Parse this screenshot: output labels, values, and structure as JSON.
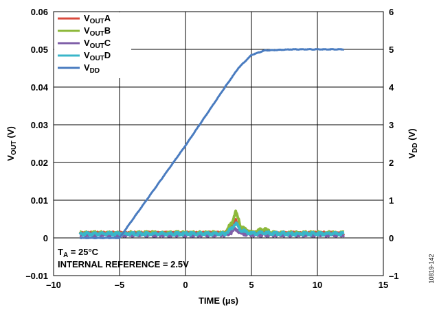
{
  "chart_data": {
    "type": "line",
    "xlabel": "TIME (µs)",
    "ylabel_left": "V_OUT (V)",
    "ylabel_right": "V_DD (V)",
    "xlim": [
      -10,
      15
    ],
    "ylim_left": [
      -0.01,
      0.06
    ],
    "ylim_right": [
      -1,
      6
    ],
    "x_ticks": [
      "–10",
      "–5",
      "0",
      "5",
      "10",
      "15"
    ],
    "y_left_ticks": [
      "–0.01",
      "0",
      "0.01",
      "0.02",
      "0.03",
      "0.04",
      "0.05",
      "0.06"
    ],
    "y_right_ticks": [
      "–1",
      "0",
      "1",
      "2",
      "3",
      "4",
      "5",
      "6"
    ],
    "grid": true,
    "legend_position": "top-left",
    "series": [
      {
        "name": "V_OUT A",
        "name_main": "V",
        "name_sub": "OUT",
        "name_suffix": "A",
        "axis": "left",
        "color": "#d94a3d",
        "x": [
          -8,
          -5,
          -1,
          3,
          3.5,
          3.8,
          4.2,
          5,
          6,
          6.5,
          8,
          12
        ],
        "y": [
          0.0012,
          0.0012,
          0.0012,
          0.0012,
          0.003,
          0.005,
          0.0025,
          0.0012,
          0.0015,
          0.001,
          0.0012,
          0.0012
        ]
      },
      {
        "name": "V_OUT B",
        "name_main": "V",
        "name_sub": "OUT",
        "name_suffix": "B",
        "axis": "left",
        "color": "#8db83a",
        "x": [
          -8,
          -5,
          -1,
          3,
          3.5,
          3.8,
          4.2,
          5,
          6,
          6.5,
          8,
          12
        ],
        "y": [
          0.0013,
          0.0013,
          0.0013,
          0.0013,
          0.004,
          0.007,
          0.003,
          0.0013,
          0.0025,
          0.0013,
          0.0013,
          0.0013
        ]
      },
      {
        "name": "V_OUT C",
        "name_main": "V",
        "name_sub": "OUT",
        "name_suffix": "C",
        "axis": "left",
        "color": "#7f5fa8",
        "x": [
          -8,
          -5,
          -1,
          3,
          3.5,
          3.8,
          4.2,
          5,
          6,
          8,
          12
        ],
        "y": [
          0.0008,
          0.0008,
          0.0008,
          0.0008,
          0.0015,
          0.0025,
          0.0012,
          0.0008,
          0.0008,
          0.0008,
          0.0008
        ]
      },
      {
        "name": "V_OUT D",
        "name_main": "V",
        "name_sub": "OUT",
        "name_suffix": "D",
        "axis": "left",
        "color": "#39b6c9",
        "x": [
          -8,
          -5,
          -1,
          3,
          3.5,
          3.8,
          4.2,
          5,
          6,
          8,
          12
        ],
        "y": [
          0.0011,
          0.0011,
          0.0011,
          0.0011,
          0.0025,
          0.004,
          0.002,
          0.0011,
          0.0013,
          0.0011,
          0.0011
        ]
      },
      {
        "name": "V_DD",
        "name_main": "V",
        "name_sub": "DD",
        "name_suffix": "",
        "axis": "right",
        "color": "#4a7cc0",
        "x": [
          -8,
          -5,
          0,
          3,
          4,
          5,
          6,
          8,
          12
        ],
        "y": [
          0,
          0,
          2.45,
          4.0,
          4.5,
          4.85,
          4.97,
          5.0,
          5.0
        ]
      }
    ],
    "annotation_line1_main": "T",
    "annotation_line1_sub": "A",
    "annotation_line1_rest": " = 25°C",
    "annotation_line2": "INTERNAL REFERENCE = 2.5V",
    "figure_id": "10819-142"
  }
}
